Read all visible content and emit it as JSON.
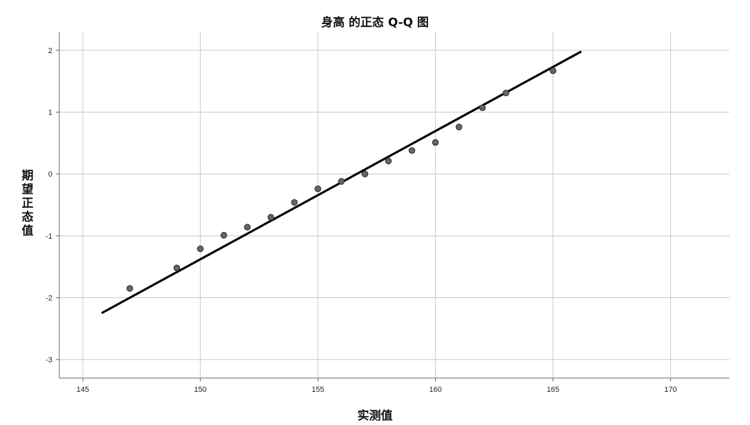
{
  "chart_data": {
    "type": "scatter",
    "title": "身高 的正态 Q-Q 图",
    "xlabel": "实测值",
    "ylabel": "期望正态值",
    "xlim": [
      144,
      172.5
    ],
    "ylim": [
      -3.3,
      2.3
    ],
    "xticks": [
      145,
      150,
      155,
      160,
      165,
      170
    ],
    "yticks": [
      2,
      1,
      0,
      -1,
      -2,
      -3
    ],
    "grid": true,
    "series": [
      {
        "points": [
          [
            147,
            -1.85
          ],
          [
            149,
            -1.52
          ],
          [
            150,
            -1.21
          ],
          [
            151,
            -0.99
          ],
          [
            152,
            -0.86
          ],
          [
            153,
            -0.7
          ],
          [
            154,
            -0.46
          ],
          [
            155,
            -0.24
          ],
          [
            156,
            -0.12
          ],
          [
            157,
            0.0
          ],
          [
            158,
            0.21
          ],
          [
            159,
            0.38
          ],
          [
            160,
            0.51
          ],
          [
            161,
            0.76
          ],
          [
            162,
            1.07
          ],
          [
            163,
            1.31
          ],
          [
            165,
            1.67
          ]
        ]
      }
    ],
    "reference_line": {
      "x": [
        145.8,
        166.2
      ],
      "y": [
        -2.25,
        1.98
      ]
    },
    "colors": {
      "marker_fill": "#666666",
      "marker_stroke": "#333333",
      "line": "#000000",
      "grid": "#c8c8c8",
      "axis": "#666666"
    }
  }
}
